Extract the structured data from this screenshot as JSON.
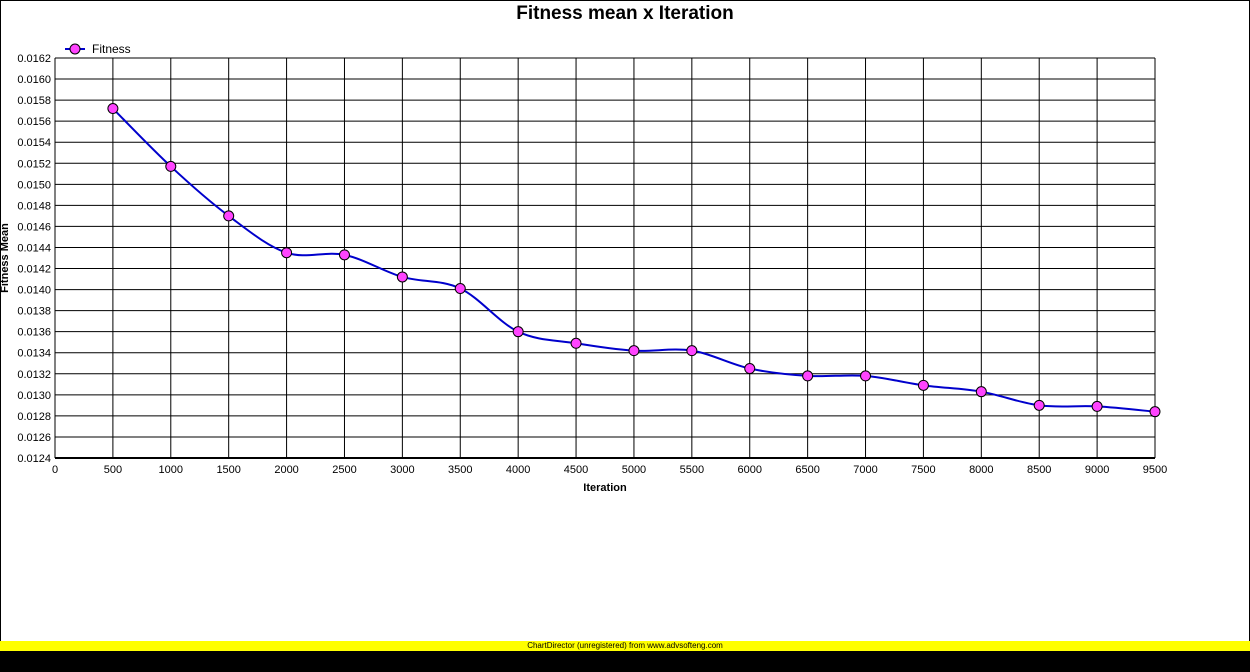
{
  "chart_data": {
    "type": "line",
    "title": "Fitness mean x Iteration",
    "xlabel": "Iteration",
    "ylabel": "Fitness Mean",
    "xlim": [
      0,
      9500
    ],
    "ylim": [
      0.0124,
      0.0162
    ],
    "x_ticks": [
      "0",
      "500",
      "1000",
      "1500",
      "2000",
      "2500",
      "3000",
      "3500",
      "4000",
      "4500",
      "5000",
      "5500",
      "6000",
      "6500",
      "7000",
      "7500",
      "8000",
      "8500",
      "9000",
      "9500"
    ],
    "y_ticks": [
      "0.0124",
      "0.0126",
      "0.0128",
      "0.0130",
      "0.0132",
      "0.0134",
      "0.0136",
      "0.0138",
      "0.0140",
      "0.0142",
      "0.0144",
      "0.0146",
      "0.0148",
      "0.0150",
      "0.0152",
      "0.0154",
      "0.0156",
      "0.0158",
      "0.0160",
      "0.0162"
    ],
    "grid": true,
    "legend_position": "top-left",
    "series": [
      {
        "name": "Fitness",
        "line_color": "#0000cc",
        "marker_color": "#ff44ff",
        "x": [
          500,
          1000,
          1500,
          2000,
          2500,
          3000,
          3500,
          4000,
          4500,
          5000,
          5500,
          6000,
          6500,
          7000,
          7500,
          8000,
          8500,
          9000,
          9500
        ],
        "values": [
          0.01572,
          0.01517,
          0.0147,
          0.01435,
          0.01433,
          0.01412,
          0.01401,
          0.0136,
          0.01349,
          0.01342,
          0.01342,
          0.01325,
          0.01318,
          0.01318,
          0.01309,
          0.01303,
          0.0129,
          0.01289,
          0.01284
        ]
      }
    ]
  },
  "footer": {
    "watermark": "ChartDirector (unregistered) from www.advsofteng.com"
  }
}
